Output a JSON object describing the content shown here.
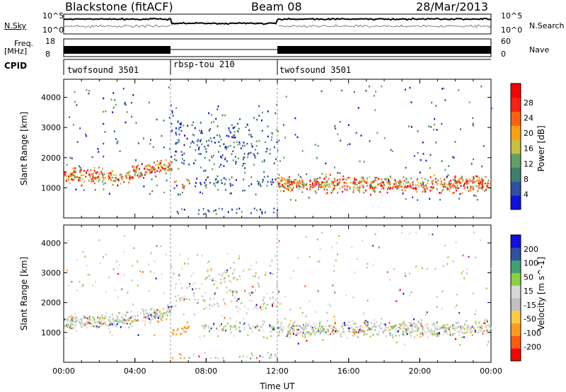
{
  "header": {
    "station": "Blackstone (fitACF)",
    "beam": "Beam 08",
    "date": "28/Mar/2013"
  },
  "noise_panel": {
    "left_label": "N.Sky",
    "right_label": "N.Search",
    "left_ticks": [
      "10^5",
      "10^0"
    ],
    "right_ticks": [
      "10^5",
      "10^0"
    ]
  },
  "freq_panel": {
    "left_label_line1": "Freq.",
    "left_label_line2": "[MHz]",
    "right_label": "Nave",
    "left_ticks": [
      "18",
      "8"
    ],
    "right_ticks": [
      "60",
      "0"
    ]
  },
  "cpid": {
    "label": "CPID",
    "segments": [
      {
        "name": "twofsound 3501",
        "start_hour": 0,
        "end_hour": 6
      },
      {
        "name": "rbsp-tou 210",
        "start_hour": 6,
        "end_hour": 12
      },
      {
        "name": "twofsound 3501",
        "start_hour": 12,
        "end_hour": 24
      }
    ]
  },
  "colors": {
    "power": [
      "#1010e0",
      "#2f4fa8",
      "#3f7f6f",
      "#5fa060",
      "#c8c040",
      "#ffa010",
      "#ff6010",
      "#ff2010",
      "#ff0000"
    ],
    "velocity": [
      "#ff0000",
      "#ff5a10",
      "#ff9a20",
      "#ffcc40",
      "#c0c0c0",
      "#d8d8d8",
      "#8ad040",
      "#40a070",
      "#3050a0",
      "#1010e0"
    ]
  },
  "chart_data": [
    {
      "type": "heatmap",
      "name": "power",
      "ylabel": "Slant Range [km]",
      "ylim": [
        0,
        4600
      ],
      "yticks": [
        "1000",
        "2000",
        "3000",
        "4000"
      ],
      "xlim": [
        0,
        24
      ],
      "colorbar_label": "Power [dB]",
      "colorbar_ticks": [
        "4",
        "8",
        "12",
        "16",
        "20",
        "24",
        "28"
      ],
      "colorbar_range": [
        0,
        33
      ]
    },
    {
      "type": "heatmap",
      "name": "velocity",
      "ylabel": "Slant Range [km]",
      "ylim": [
        0,
        4600
      ],
      "yticks": [
        "1000",
        "2000",
        "3000",
        "4000"
      ],
      "xlim": [
        0,
        24
      ],
      "xlabel": "Time UT",
      "xticks": [
        "00:00",
        "04:00",
        "08:00",
        "12:00",
        "16:00",
        "20:00",
        "00:00"
      ],
      "colorbar_label": "Velocity [m s^-1]",
      "colorbar_ticks": [
        "200",
        "100",
        "50",
        "15",
        "-15",
        "-50",
        "-100",
        "-200"
      ]
    }
  ]
}
